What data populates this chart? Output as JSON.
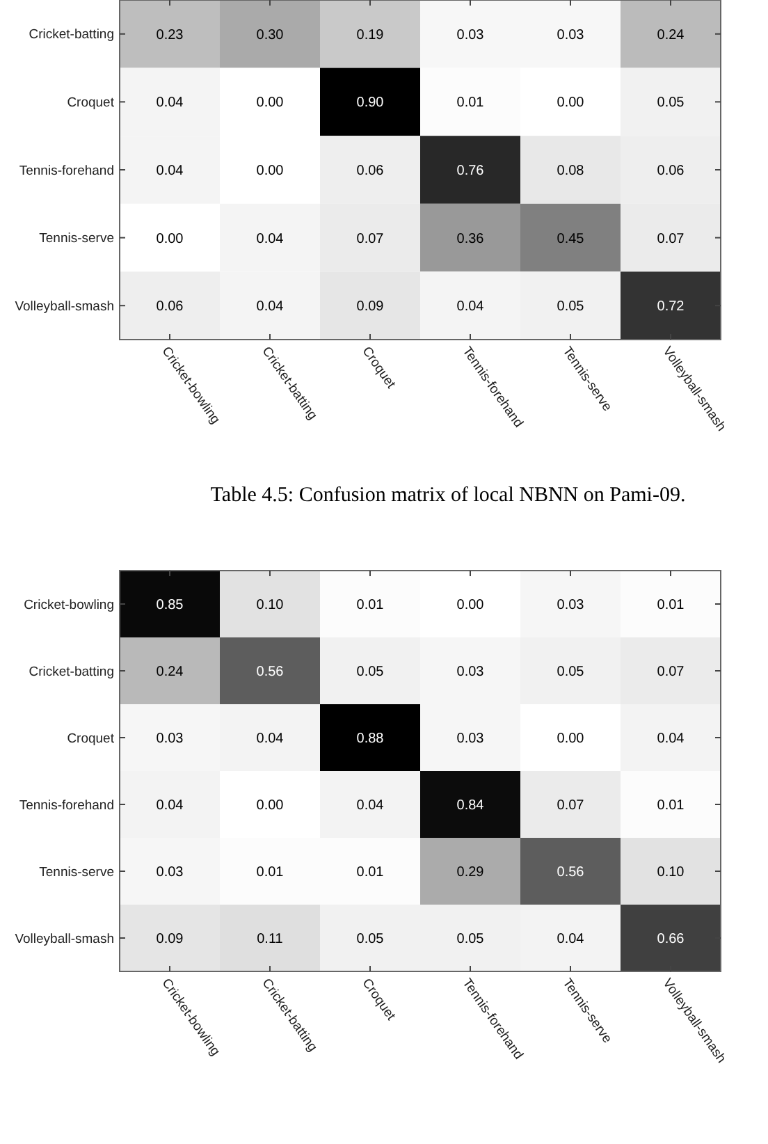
{
  "chart_data": [
    {
      "type": "heatmap",
      "categories": [
        "Cricket-bowling",
        "Cricket-batting",
        "Croquet",
        "Tennis-forehand",
        "Tennis-serve",
        "Volleyball-smash"
      ],
      "y_categories": [
        "Cricket-batting",
        "Croquet",
        "Tennis-forehand",
        "Tennis-serve",
        "Volleyball-smash"
      ],
      "cells": [
        [
          0.23,
          0.3,
          0.19,
          0.03,
          0.03,
          0.24
        ],
        [
          0.04,
          0.0,
          0.9,
          0.01,
          0.0,
          0.05
        ],
        [
          0.04,
          0.0,
          0.06,
          0.76,
          0.08,
          0.06
        ],
        [
          0.0,
          0.04,
          0.07,
          0.36,
          0.45,
          0.07
        ],
        [
          0.06,
          0.04,
          0.09,
          0.04,
          0.05,
          0.72
        ]
      ],
      "cell_labels": [
        [
          "0.23",
          "0.30",
          "0.19",
          "0.03",
          "0.03",
          "0.24"
        ],
        [
          "0.04",
          "0.00",
          "0.90",
          "0.01",
          "0.00",
          "0.05"
        ],
        [
          "0.04",
          "0.00",
          "0.06",
          "0.76",
          "0.08",
          "0.06"
        ],
        [
          "0.00",
          "0.04",
          "0.07",
          "0.36",
          "0.45",
          "0.07"
        ],
        [
          "0.06",
          "0.04",
          "0.09",
          "0.04",
          "0.05",
          "0.72"
        ]
      ],
      "data_labels": true,
      "annotations": [
        "Table 4.5: Confusion matrix of local NBNN on Pami-09."
      ]
    },
    {
      "type": "heatmap",
      "categories": [
        "Cricket-bowling",
        "Cricket-batting",
        "Croquet",
        "Tennis-forehand",
        "Tennis-serve",
        "Volleyball-smash"
      ],
      "y_categories": [
        "Cricket-bowling",
        "Cricket-batting",
        "Croquet",
        "Tennis-forehand",
        "Tennis-serve",
        "Volleyball-smash"
      ],
      "cells": [
        [
          0.85,
          0.1,
          0.01,
          0.0,
          0.03,
          0.01
        ],
        [
          0.24,
          0.56,
          0.05,
          0.03,
          0.05,
          0.07
        ],
        [
          0.03,
          0.04,
          0.88,
          0.03,
          0.0,
          0.04
        ],
        [
          0.04,
          0.0,
          0.04,
          0.84,
          0.07,
          0.01
        ],
        [
          0.03,
          0.01,
          0.01,
          0.29,
          0.56,
          0.1
        ],
        [
          0.09,
          0.11,
          0.05,
          0.05,
          0.04,
          0.66
        ]
      ],
      "cell_labels": [
        [
          "0.85",
          "0.10",
          "0.01",
          "0.00",
          "0.03",
          "0.01"
        ],
        [
          "0.24",
          "0.56",
          "0.05",
          "0.03",
          "0.05",
          "0.07"
        ],
        [
          "0.03",
          "0.04",
          "0.88",
          "0.03",
          "0.00",
          "0.04"
        ],
        [
          "0.04",
          "0.00",
          "0.04",
          "0.84",
          "0.07",
          "0.01"
        ],
        [
          "0.03",
          "0.01",
          "0.01",
          "0.29",
          "0.56",
          "0.10"
        ],
        [
          "0.09",
          "0.11",
          "0.05",
          "0.05",
          "0.04",
          "0.66"
        ]
      ],
      "data_labels": true
    }
  ]
}
